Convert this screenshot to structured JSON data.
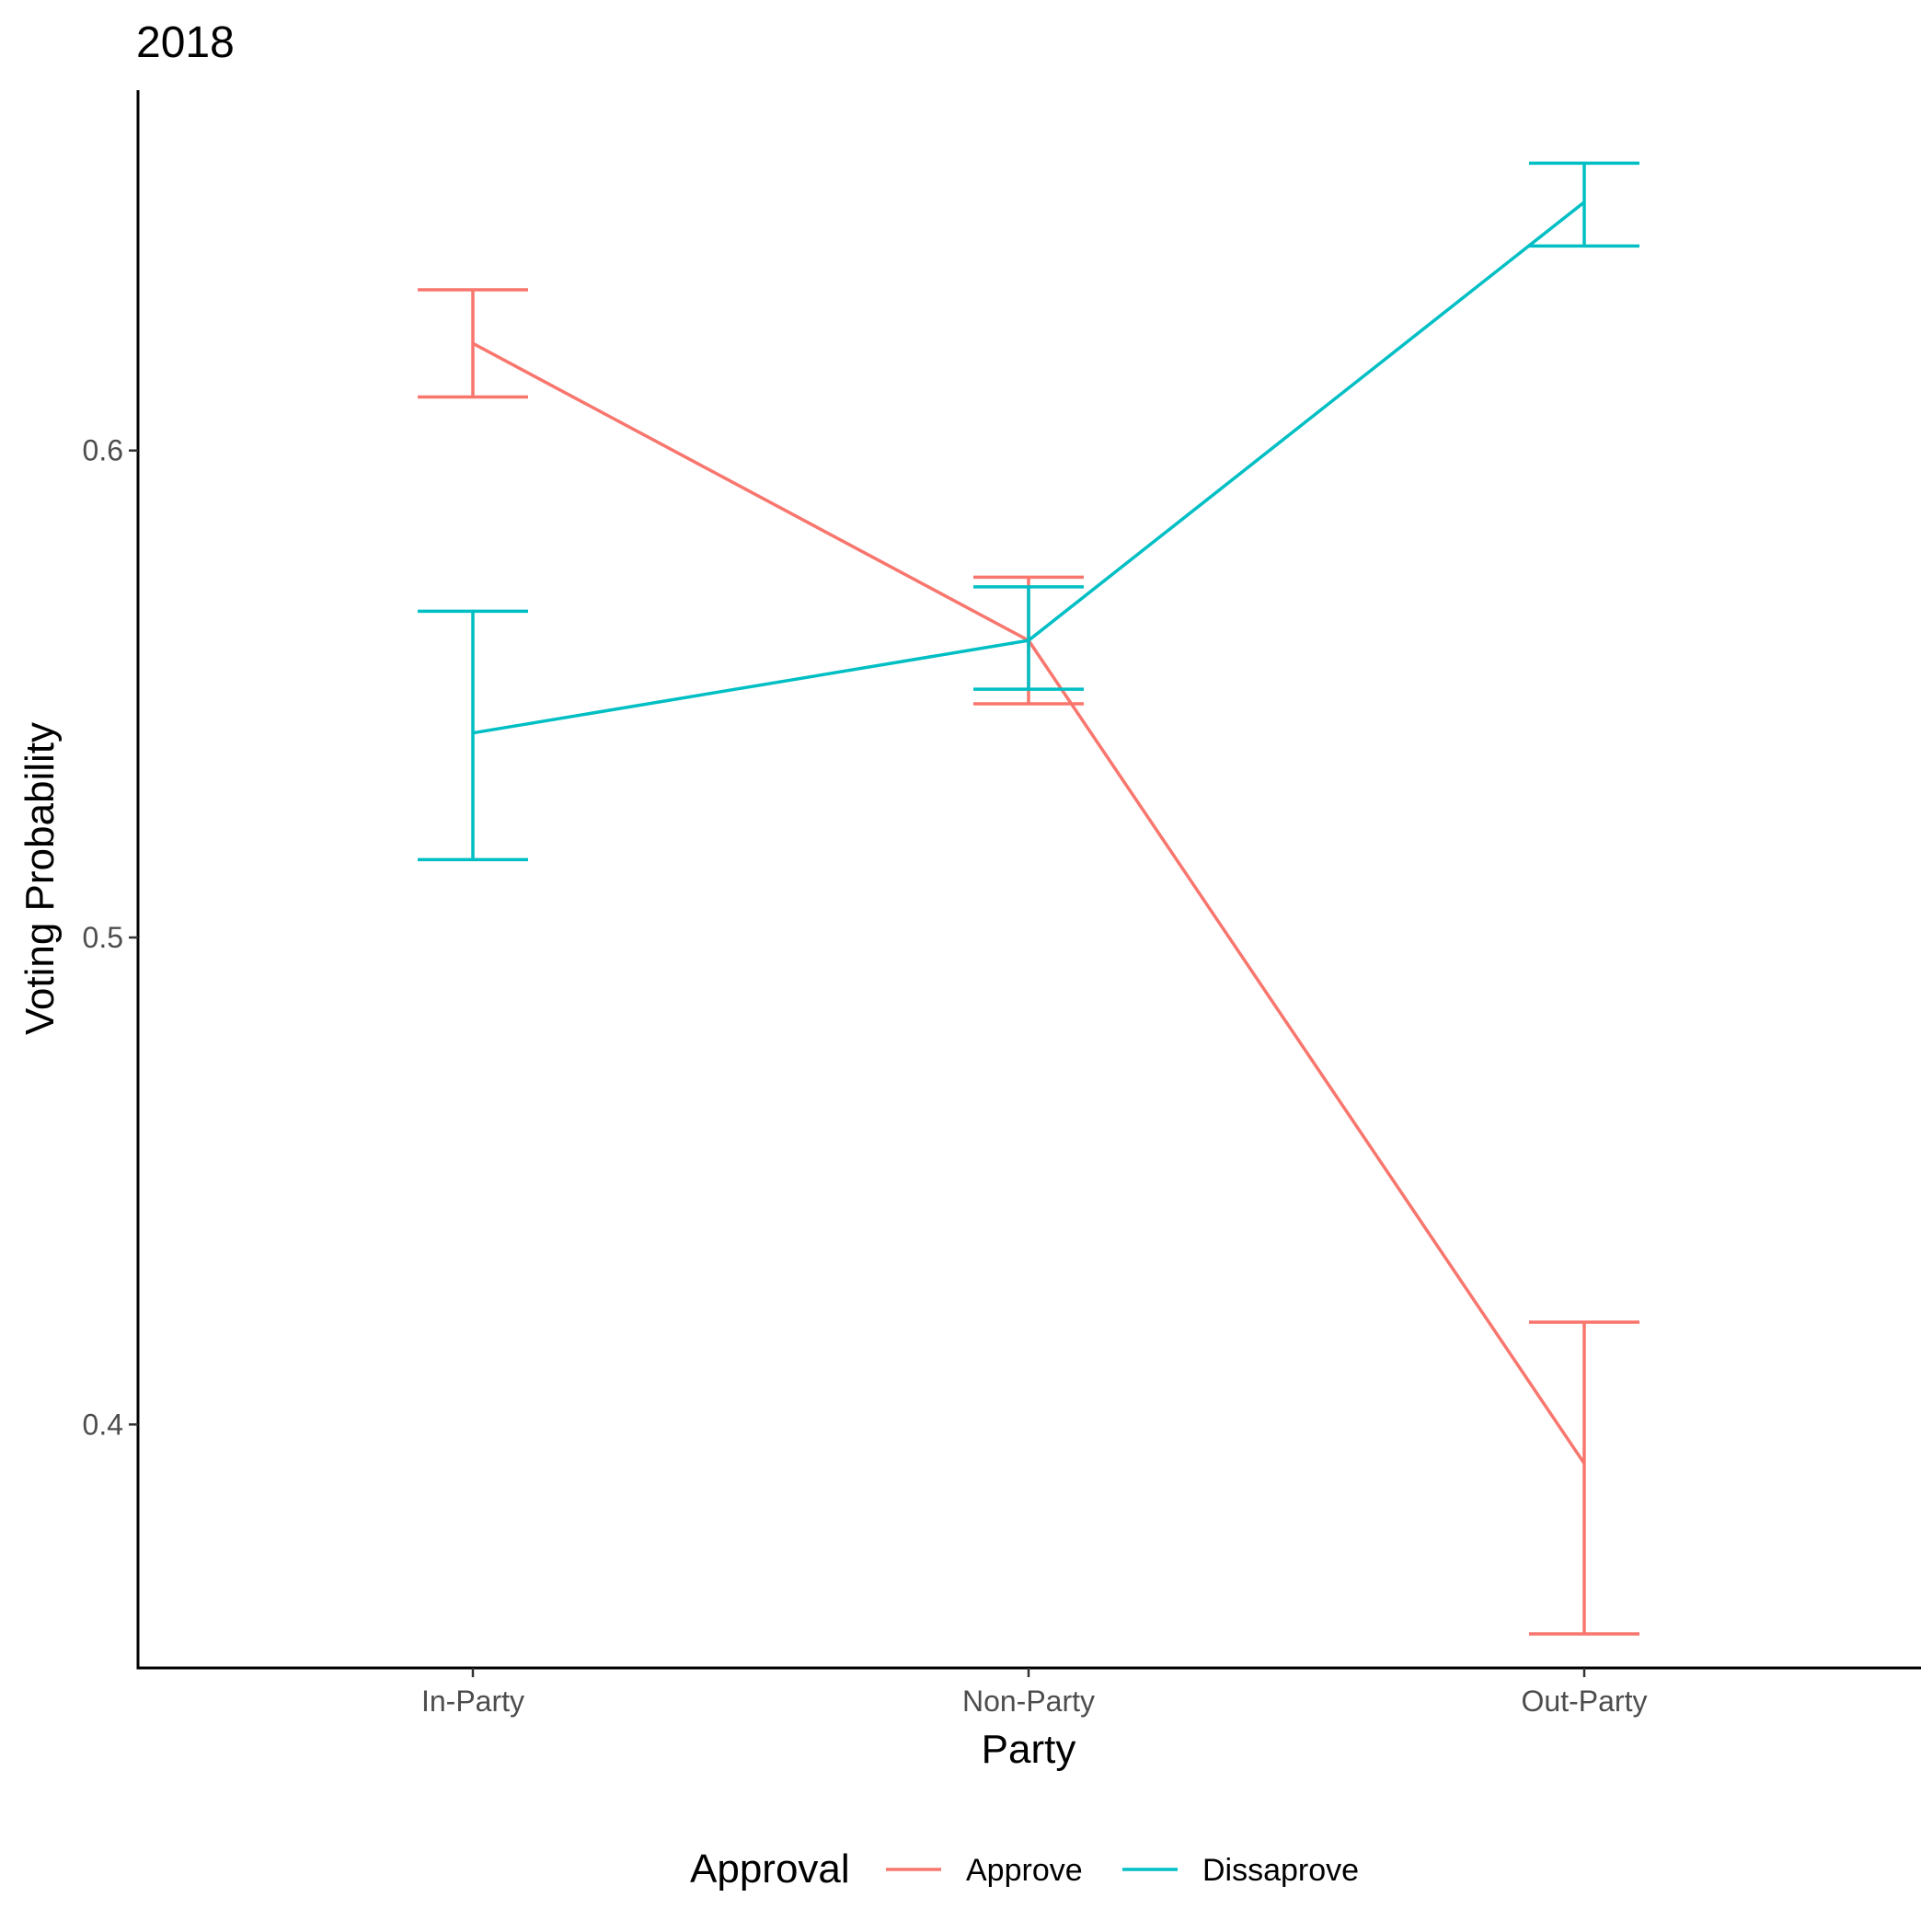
{
  "chart_data": {
    "type": "line",
    "title": "2018",
    "xlabel": "Party",
    "ylabel": "Voting Probability",
    "categories": [
      "In-Party",
      "Non-Party",
      "Out-Party"
    ],
    "y_ticks": [
      0.4,
      0.5,
      0.6
    ],
    "y_tick_labels": [
      "0.4",
      "0.5",
      "0.6"
    ],
    "ylim": [
      0.35,
      0.674
    ],
    "grid": false,
    "legend": {
      "title": "Approval",
      "position": "bottom"
    },
    "series": [
      {
        "name": "Approve",
        "color": "#F8766D",
        "values": [
          0.622,
          0.561,
          0.392
        ],
        "lower": [
          0.611,
          0.548,
          0.357
        ],
        "upper": [
          0.633,
          0.574,
          0.421
        ]
      },
      {
        "name": "Dissaprove",
        "color": "#00BFC4",
        "values": [
          0.542,
          0.561,
          0.651
        ],
        "lower": [
          0.516,
          0.551,
          0.642
        ],
        "upper": [
          0.567,
          0.572,
          0.659
        ]
      }
    ]
  }
}
